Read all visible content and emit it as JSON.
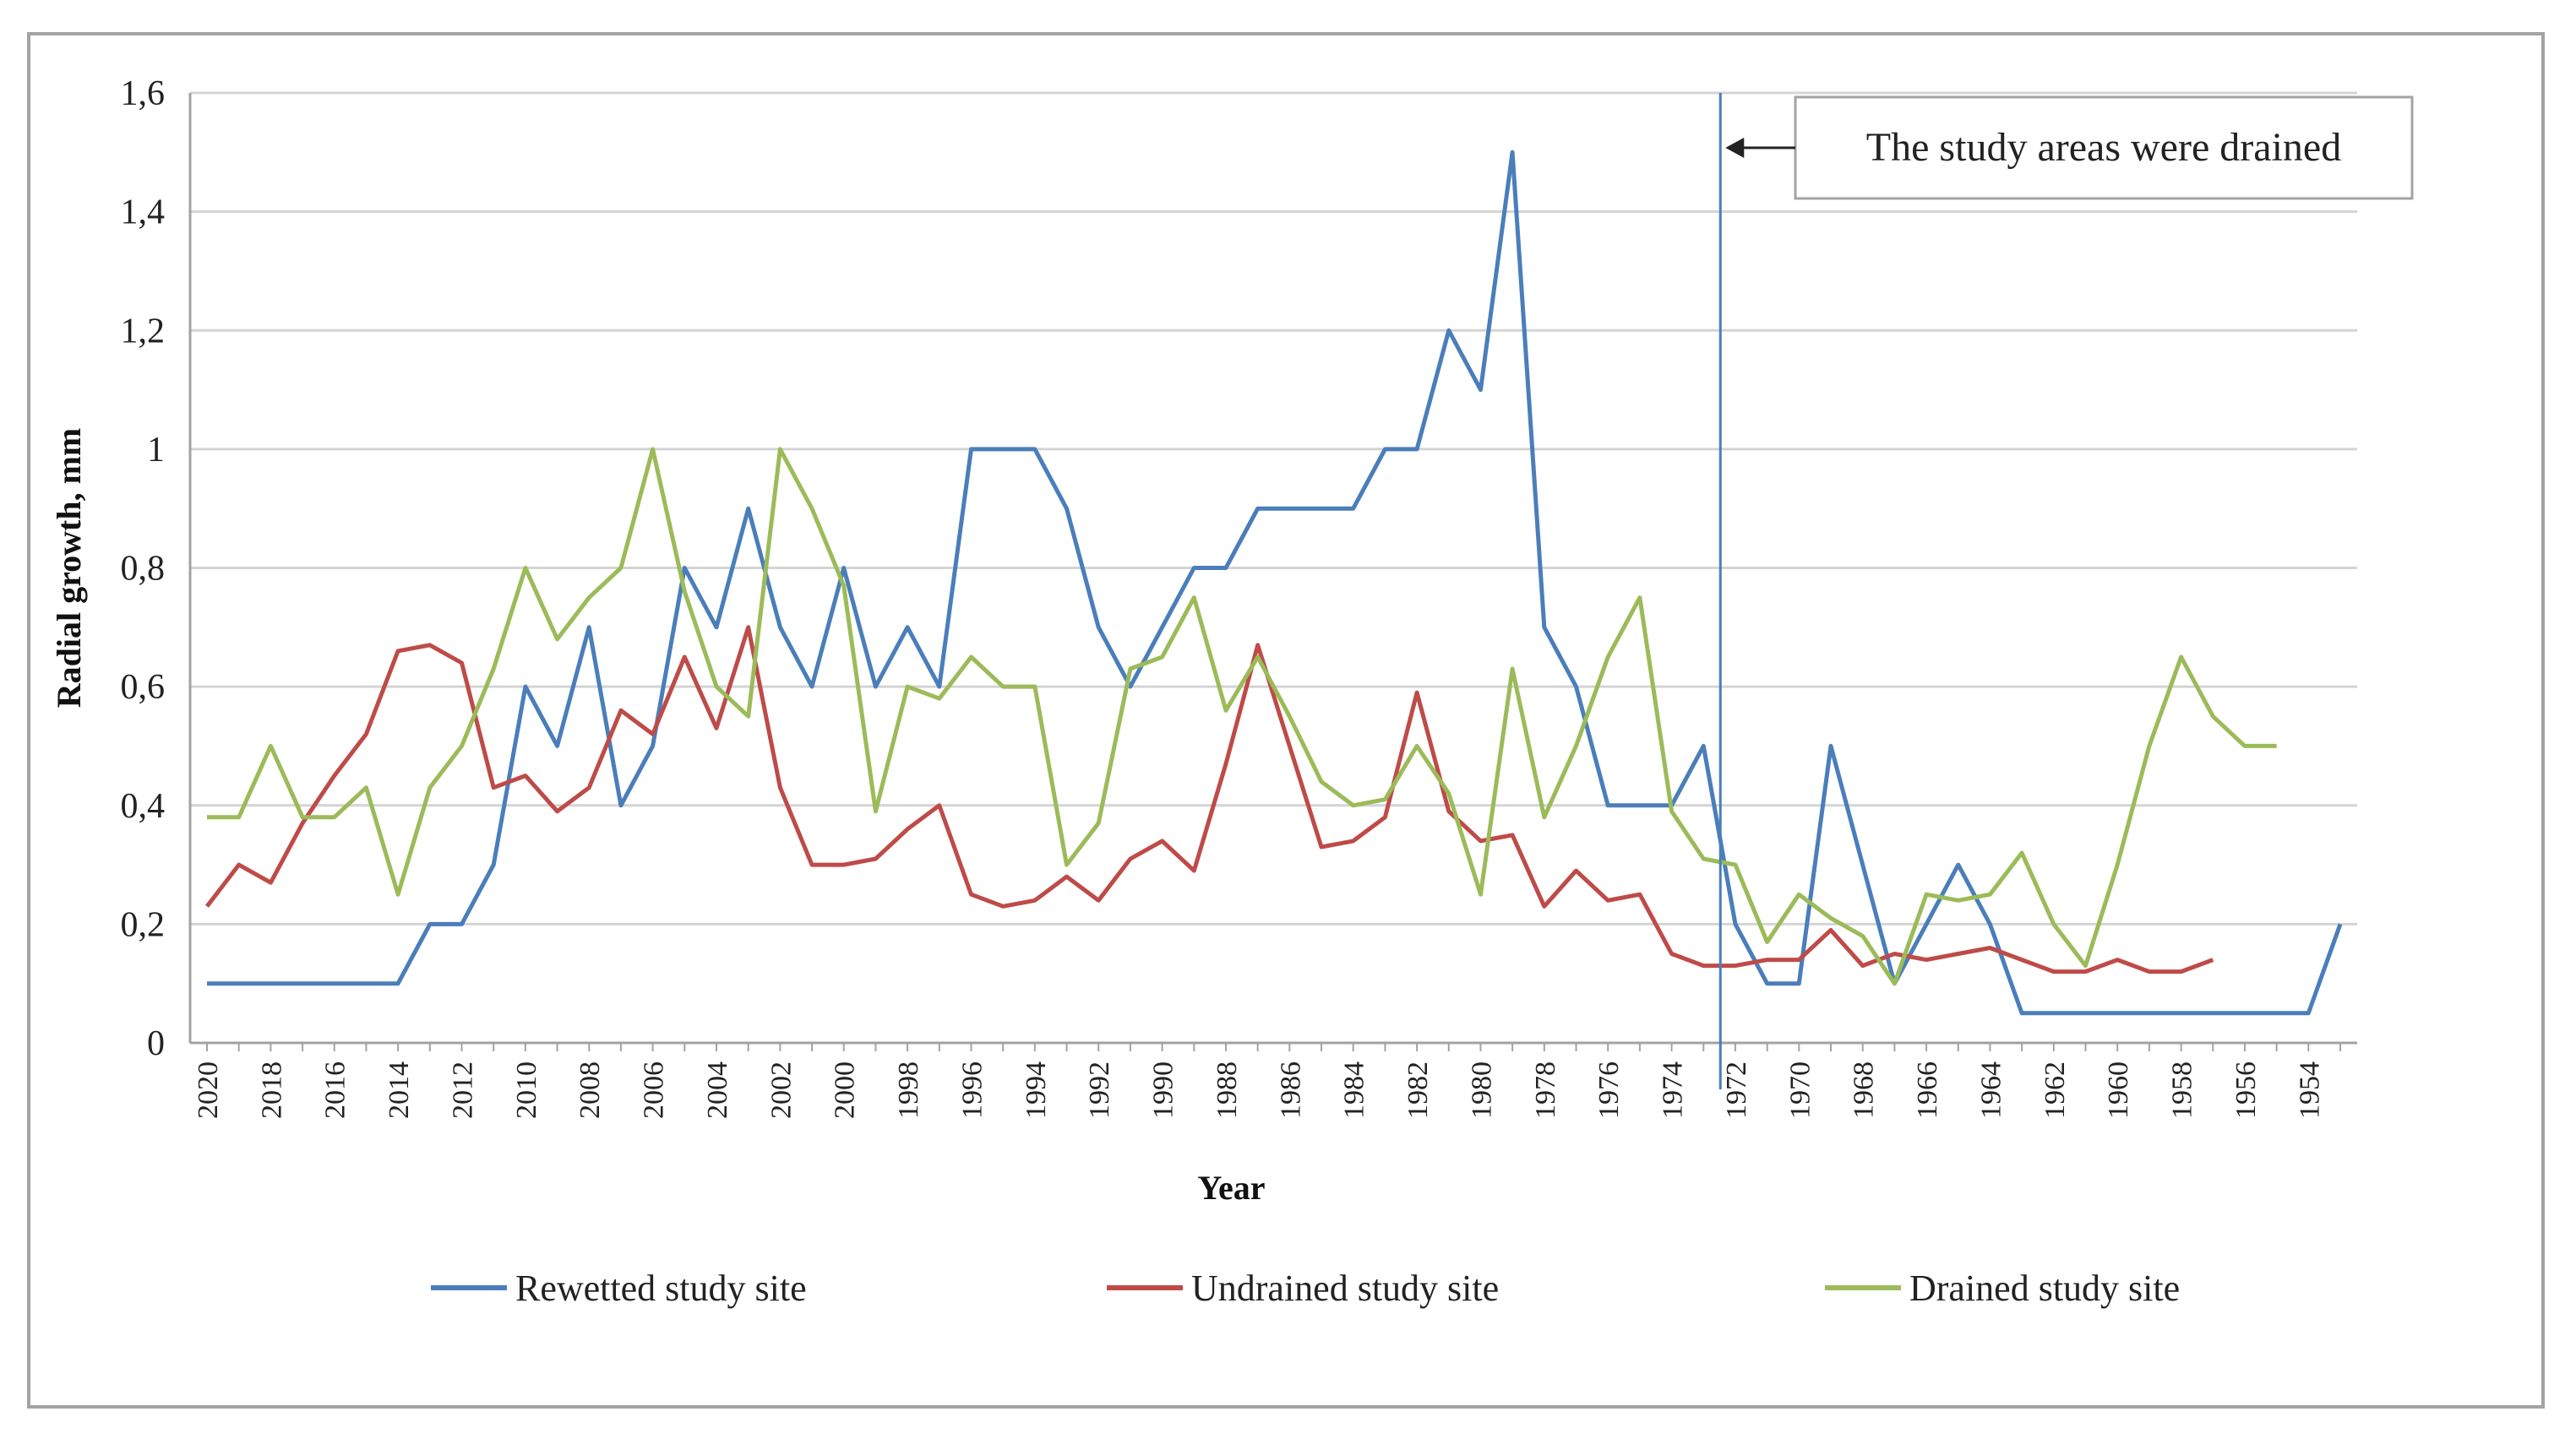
{
  "chart_data": {
    "type": "line",
    "title": "",
    "xlabel": "Year",
    "ylabel": "Radial growth, mm",
    "ylim": [
      0,
      1.6
    ],
    "yticks": [
      "0",
      "0,2",
      "0,4",
      "0,6",
      "0,8",
      "1",
      "1,2",
      "1,4",
      "1,6"
    ],
    "x": [
      2020,
      2019,
      2018,
      2017,
      2016,
      2015,
      2014,
      2013,
      2012,
      2011,
      2010,
      2009,
      2008,
      2007,
      2006,
      2005,
      2004,
      2003,
      2002,
      2001,
      2000,
      1999,
      1998,
      1997,
      1996,
      1995,
      1994,
      1993,
      1992,
      1991,
      1990,
      1989,
      1988,
      1987,
      1986,
      1985,
      1984,
      1983,
      1982,
      1981,
      1980,
      1979,
      1978,
      1977,
      1976,
      1975,
      1974,
      1973,
      1972,
      1971,
      1970,
      1969,
      1968,
      1967,
      1966,
      1965,
      1964,
      1963,
      1962,
      1961,
      1960,
      1959,
      1958,
      1957,
      1956,
      1955,
      1954,
      1953
    ],
    "xtick_labels": [
      "2020",
      "2018",
      "2016",
      "2014",
      "2012",
      "2010",
      "2008",
      "2006",
      "2004",
      "2002",
      "2000",
      "1998",
      "1996",
      "1994",
      "1992",
      "1990",
      "1988",
      "1986",
      "1984",
      "1982",
      "1980",
      "1978",
      "1976",
      "1974",
      "1972",
      "1970",
      "1968",
      "1966",
      "1964",
      "1962",
      "1960",
      "1958",
      "1956",
      "1954"
    ],
    "series": [
      {
        "name": "Rewetted study site",
        "color": "#4a7ebb",
        "values": [
          0.1,
          0.1,
          0.1,
          0.1,
          0.1,
          0.1,
          0.1,
          0.2,
          0.2,
          0.3,
          0.6,
          0.5,
          0.7,
          0.4,
          0.5,
          0.8,
          0.7,
          0.9,
          0.7,
          0.6,
          0.8,
          0.6,
          0.7,
          0.6,
          1.0,
          1.0,
          1.0,
          0.9,
          0.7,
          0.6,
          0.7,
          0.8,
          0.8,
          0.9,
          0.9,
          0.9,
          0.9,
          1.0,
          1.0,
          1.2,
          1.1,
          1.5,
          0.7,
          0.6,
          0.4,
          0.4,
          0.4,
          0.5,
          0.2,
          0.1,
          0.1,
          0.5,
          0.3,
          0.1,
          0.2,
          0.3,
          0.2,
          0.05,
          0.05,
          0.05,
          0.05,
          0.05,
          0.05,
          0.05,
          0.05,
          0.05,
          0.05,
          0.2
        ]
      },
      {
        "name": "Undrained study site",
        "color": "#be4b48",
        "values": [
          0.23,
          0.3,
          0.27,
          0.37,
          0.45,
          0.52,
          0.66,
          0.67,
          0.64,
          0.43,
          0.45,
          0.39,
          0.43,
          0.56,
          0.52,
          0.65,
          0.53,
          0.7,
          0.43,
          0.3,
          0.3,
          0.31,
          0.36,
          0.4,
          0.25,
          0.23,
          0.24,
          0.28,
          0.24,
          0.31,
          0.34,
          0.29,
          0.47,
          0.67,
          0.5,
          0.33,
          0.34,
          0.38,
          0.59,
          0.39,
          0.34,
          0.35,
          0.23,
          0.29,
          0.24,
          0.25,
          0.15,
          0.13,
          0.13,
          0.14,
          0.14,
          0.19,
          0.13,
          0.15,
          0.14,
          0.15,
          0.16,
          0.14,
          0.12,
          0.12,
          0.14,
          0.12,
          0.12,
          0.14,
          null,
          null,
          null,
          null
        ]
      },
      {
        "name": "Drained study site",
        "color": "#9bbb59",
        "values": [
          0.38,
          0.38,
          0.5,
          0.38,
          0.38,
          0.43,
          0.25,
          0.43,
          0.5,
          0.63,
          0.8,
          0.68,
          0.75,
          0.8,
          1.0,
          0.76,
          0.6,
          0.55,
          1.0,
          0.9,
          0.77,
          0.39,
          0.6,
          0.58,
          0.65,
          0.6,
          0.6,
          0.3,
          0.37,
          0.63,
          0.65,
          0.75,
          0.56,
          0.65,
          0.55,
          0.44,
          0.4,
          0.41,
          0.5,
          0.42,
          0.25,
          0.63,
          0.38,
          0.5,
          0.65,
          0.75,
          0.39,
          0.31,
          0.3,
          0.17,
          0.25,
          0.21,
          0.18,
          0.1,
          0.25,
          0.24,
          0.25,
          0.32,
          0.2,
          0.13,
          0.3,
          0.5,
          0.65,
          0.55,
          0.5,
          0.5,
          null,
          null
        ]
      }
    ],
    "annotation": {
      "text": "The study areas were drained",
      "at_year": 1973
    },
    "legend_position": "bottom",
    "grid": true
  }
}
